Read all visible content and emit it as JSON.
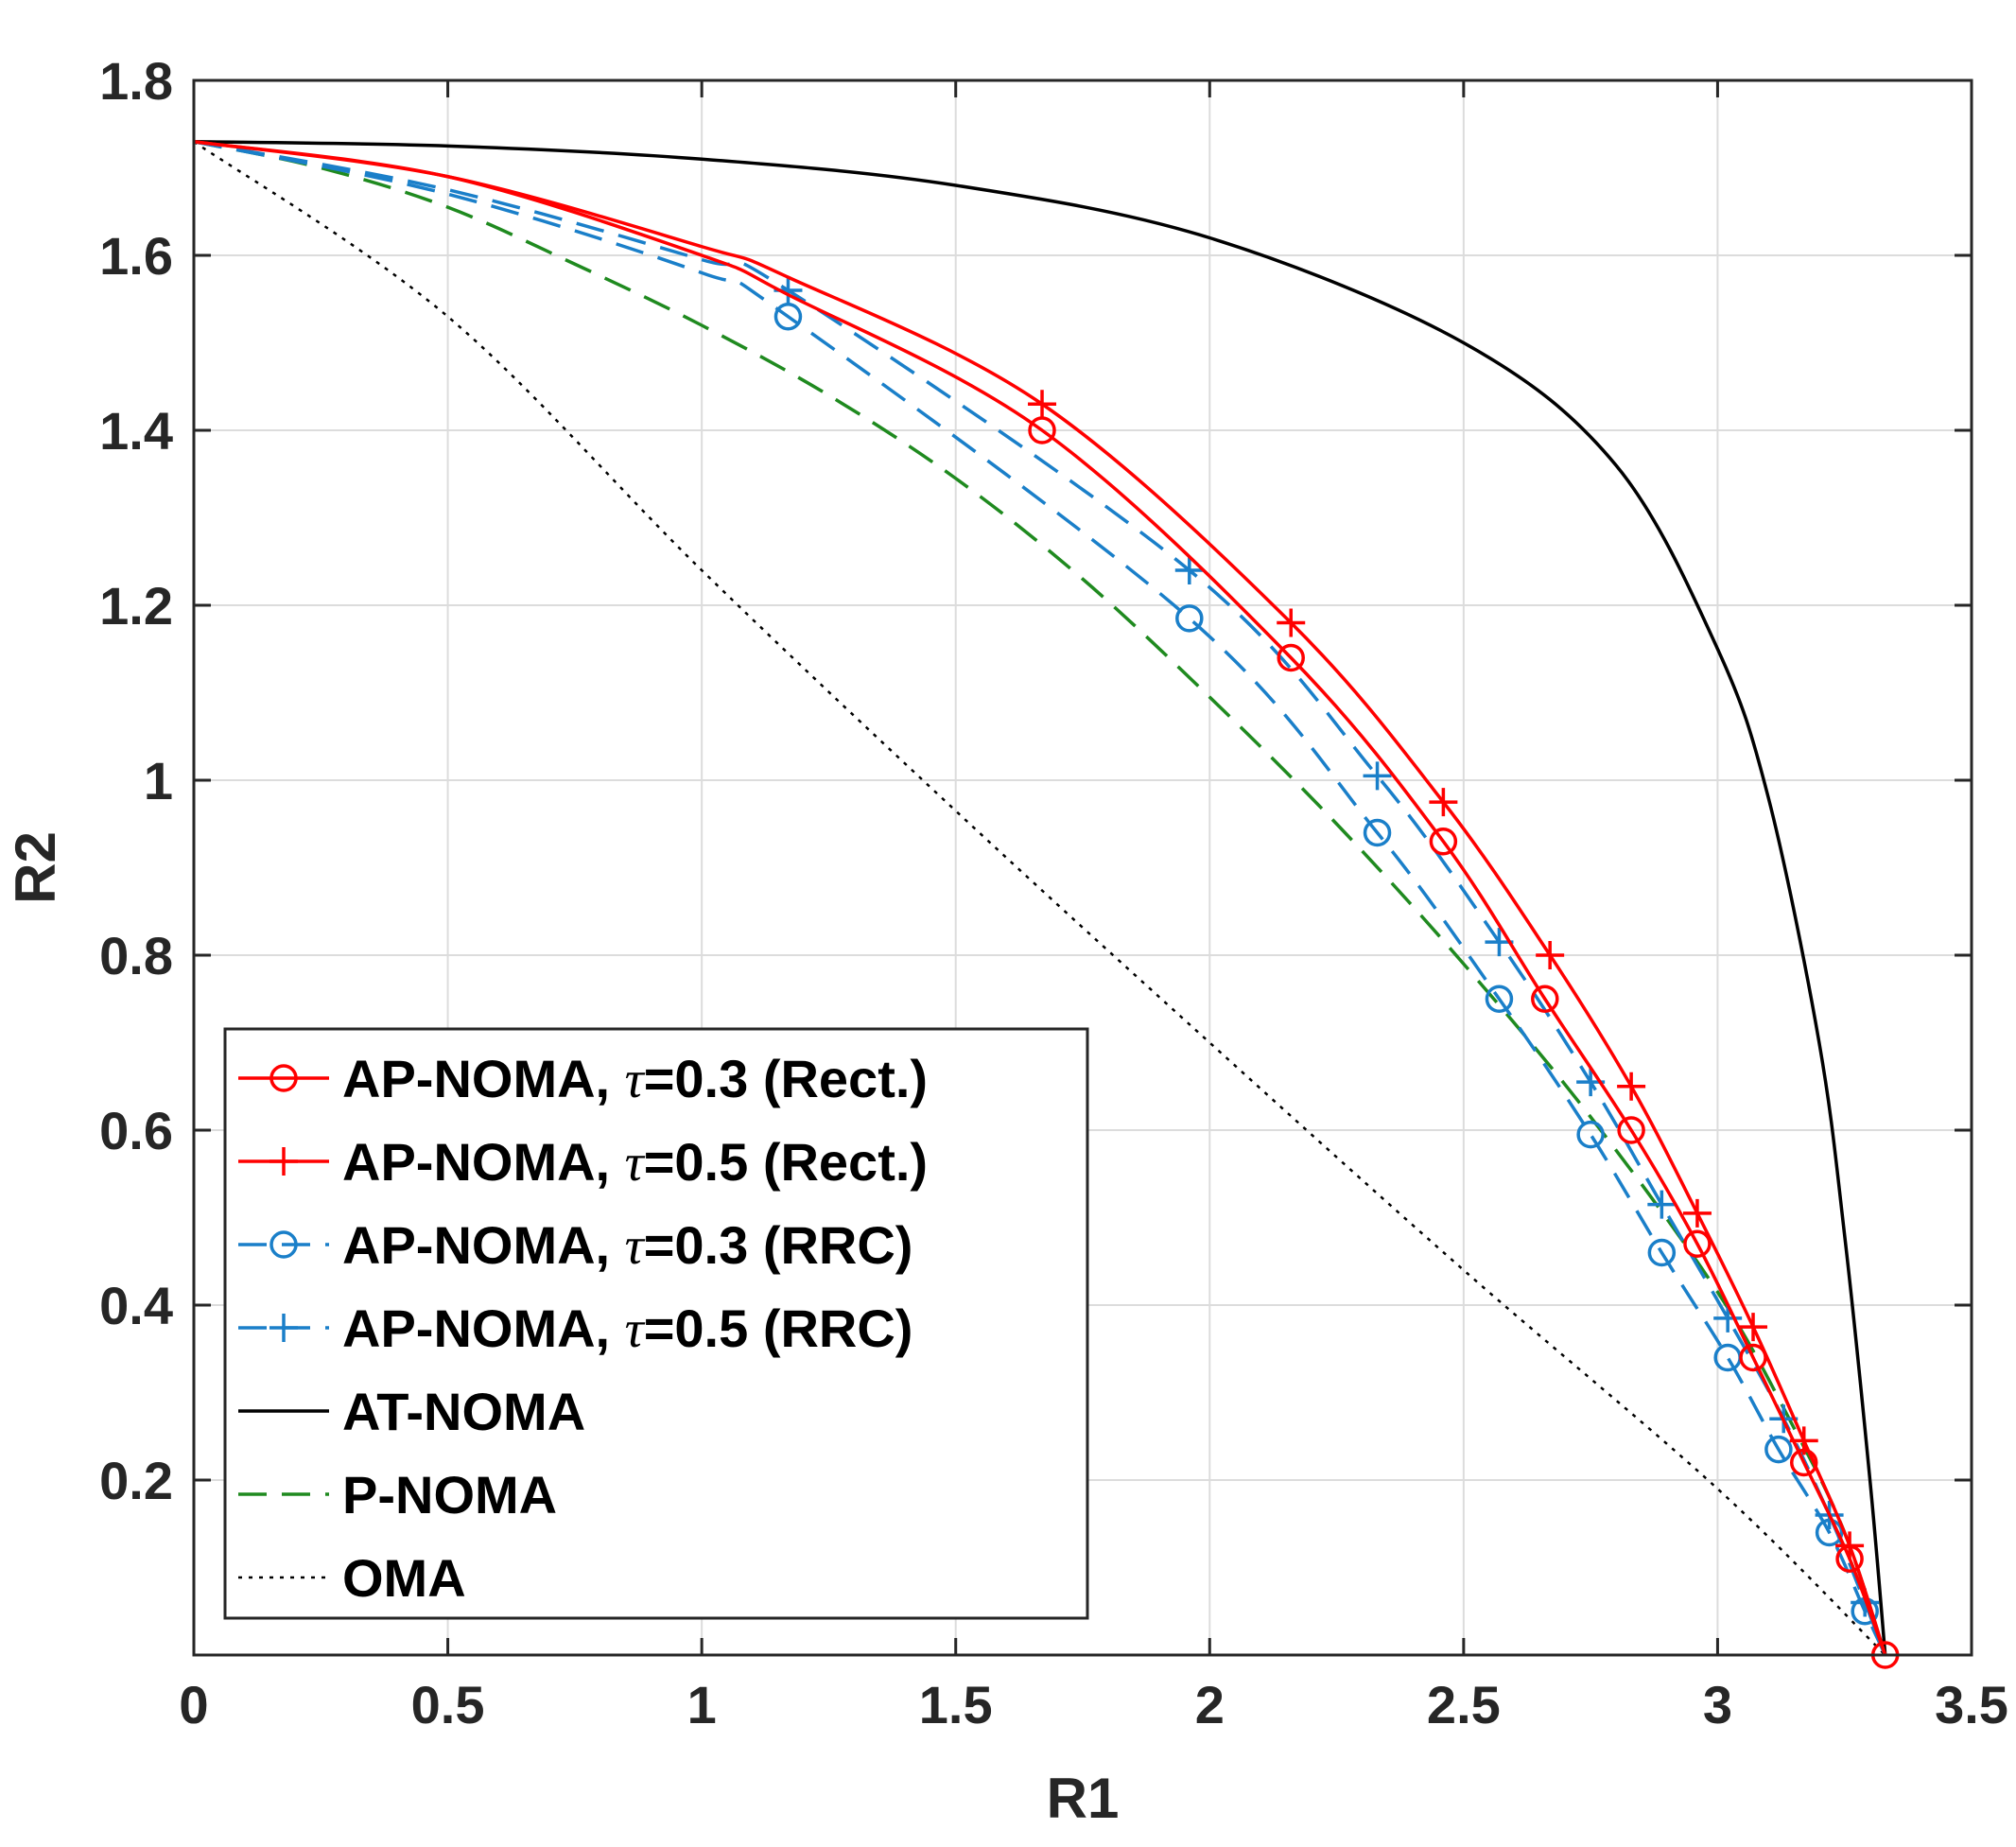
{
  "chart_data": {
    "type": "line",
    "title": "",
    "xlabel": "R1",
    "ylabel": "R2",
    "xlim": [
      0,
      3.5
    ],
    "ylim": [
      0,
      1.8
    ],
    "xticks": [
      0,
      0.5,
      1,
      1.5,
      2,
      2.5,
      3,
      3.5
    ],
    "xtick_labels": [
      "0",
      "0.5",
      "1",
      "1.5",
      "2",
      "2.5",
      "3",
      "3.5"
    ],
    "yticks": [
      0.2,
      0.4,
      0.6,
      0.8,
      1,
      1.2,
      1.4,
      1.6,
      1.8
    ],
    "ytick_labels": [
      "0.2",
      "0.4",
      "0.6",
      "0.8",
      "1",
      "1.2",
      "1.4",
      "1.6",
      "1.8"
    ],
    "grid": true,
    "legend_position": "bottom-left",
    "series": [
      {
        "name": "AP-NOMA, τ=0.3 (Rect.)",
        "name_prefix": "AP-NOMA, ",
        "name_symbol": "τ",
        "name_suffix": "=0.3 (Rect.)",
        "color": "#ff0000",
        "dash": "solid",
        "marker": "circle",
        "x": [
          0,
          0.5,
          1.0,
          1.17,
          1.67,
          2.16,
          2.46,
          2.66,
          2.83,
          2.96,
          3.07,
          3.17,
          3.26,
          3.33
        ],
        "y": [
          1.73,
          1.69,
          1.6,
          1.555,
          1.4,
          1.14,
          0.93,
          0.75,
          0.6,
          0.47,
          0.34,
          0.22,
          0.11,
          0.0
        ],
        "markers_x": [
          1.67,
          2.16,
          2.46,
          2.66,
          2.83,
          2.96,
          3.07,
          3.17,
          3.26,
          3.33
        ],
        "markers_y": [
          1.4,
          1.14,
          0.93,
          0.75,
          0.6,
          0.47,
          0.34,
          0.22,
          0.11,
          0.0
        ]
      },
      {
        "name": "AP-NOMA, τ=0.5 (Rect.)",
        "name_prefix": "AP-NOMA, ",
        "name_symbol": "τ",
        "name_suffix": "=0.5 (Rect.)",
        "color": "#ff0000",
        "dash": "solid",
        "marker": "plus",
        "x": [
          0,
          0.5,
          1.0,
          1.17,
          1.67,
          2.16,
          2.46,
          2.67,
          2.83,
          2.96,
          3.07,
          3.17,
          3.26,
          3.33
        ],
        "y": [
          1.73,
          1.69,
          1.61,
          1.575,
          1.43,
          1.18,
          0.975,
          0.8,
          0.65,
          0.505,
          0.375,
          0.245,
          0.125,
          0.0
        ],
        "markers_x": [
          1.67,
          2.16,
          2.46,
          2.67,
          2.83,
          2.96,
          3.07,
          3.17,
          3.26
        ],
        "markers_y": [
          1.43,
          1.18,
          0.975,
          0.8,
          0.65,
          0.505,
          0.375,
          0.245,
          0.125
        ]
      },
      {
        "name": "AP-NOMA, τ=0.3 (RRC)",
        "name_prefix": "AP-NOMA, ",
        "name_symbol": "τ",
        "name_suffix": "=0.3 (RRC)",
        "color": "#1a7fc9",
        "dash": "dashed",
        "marker": "circle",
        "x": [
          0,
          0.5,
          1.0,
          1.17,
          1.96,
          2.33,
          2.57,
          2.75,
          2.89,
          3.02,
          3.12,
          3.22,
          3.29,
          3.33
        ],
        "y": [
          1.73,
          1.67,
          1.58,
          1.53,
          1.185,
          0.94,
          0.75,
          0.595,
          0.46,
          0.34,
          0.235,
          0.14,
          0.05,
          0.0
        ],
        "markers_x": [
          1.17,
          1.96,
          2.33,
          2.57,
          2.75,
          2.89,
          3.02,
          3.12,
          3.22,
          3.29
        ],
        "markers_y": [
          1.53,
          1.185,
          0.94,
          0.75,
          0.595,
          0.46,
          0.34,
          0.235,
          0.14,
          0.05
        ]
      },
      {
        "name": "AP-NOMA, τ=0.5 (RRC)",
        "name_prefix": "AP-NOMA, ",
        "name_symbol": "τ",
        "name_suffix": "=0.5 (RRC)",
        "color": "#1a7fc9",
        "dash": "dashed",
        "marker": "plus",
        "x": [
          0,
          0.5,
          1.0,
          1.17,
          1.96,
          2.33,
          2.57,
          2.75,
          2.89,
          3.02,
          3.13,
          3.22,
          3.29,
          3.33
        ],
        "y": [
          1.73,
          1.675,
          1.595,
          1.56,
          1.24,
          1.005,
          0.815,
          0.655,
          0.515,
          0.385,
          0.27,
          0.16,
          0.06,
          0.0
        ],
        "markers_x": [
          1.17,
          1.96,
          2.33,
          2.57,
          2.75,
          2.89,
          3.02,
          3.13,
          3.22,
          3.29
        ],
        "markers_y": [
          1.56,
          1.24,
          1.005,
          0.815,
          0.655,
          0.515,
          0.385,
          0.27,
          0.16,
          0.06
        ]
      },
      {
        "name": "AT-NOMA",
        "color": "#000000",
        "dash": "solid",
        "marker": "none",
        "x": [
          0,
          0.5,
          1.0,
          1.5,
          2.0,
          2.5,
          2.8,
          3.0,
          3.1,
          3.2,
          3.25,
          3.3,
          3.33
        ],
        "y": [
          1.73,
          1.725,
          1.71,
          1.68,
          1.62,
          1.5,
          1.36,
          1.15,
          0.98,
          0.7,
          0.48,
          0.2,
          0.0
        ]
      },
      {
        "name": "P-NOMA",
        "color": "#1f8a1f",
        "dash": "dashed",
        "marker": "none",
        "x": [
          0,
          0.25,
          0.5,
          0.75,
          1.0,
          1.25,
          1.5,
          1.75,
          2.0,
          2.25,
          2.5,
          2.75,
          3.0,
          3.15,
          3.25,
          3.33
        ],
        "y": [
          1.73,
          1.7,
          1.655,
          1.59,
          1.52,
          1.44,
          1.345,
          1.23,
          1.095,
          0.95,
          0.79,
          0.615,
          0.415,
          0.26,
          0.14,
          0.0
        ]
      },
      {
        "name": "OMA",
        "color": "#000000",
        "dash": "dotted",
        "marker": "none",
        "x": [
          0,
          0.5,
          1.0,
          1.5,
          2.0,
          2.5,
          3.0,
          3.33
        ],
        "y": [
          1.73,
          1.53,
          1.24,
          0.965,
          0.7,
          0.44,
          0.19,
          0.0
        ]
      }
    ]
  }
}
